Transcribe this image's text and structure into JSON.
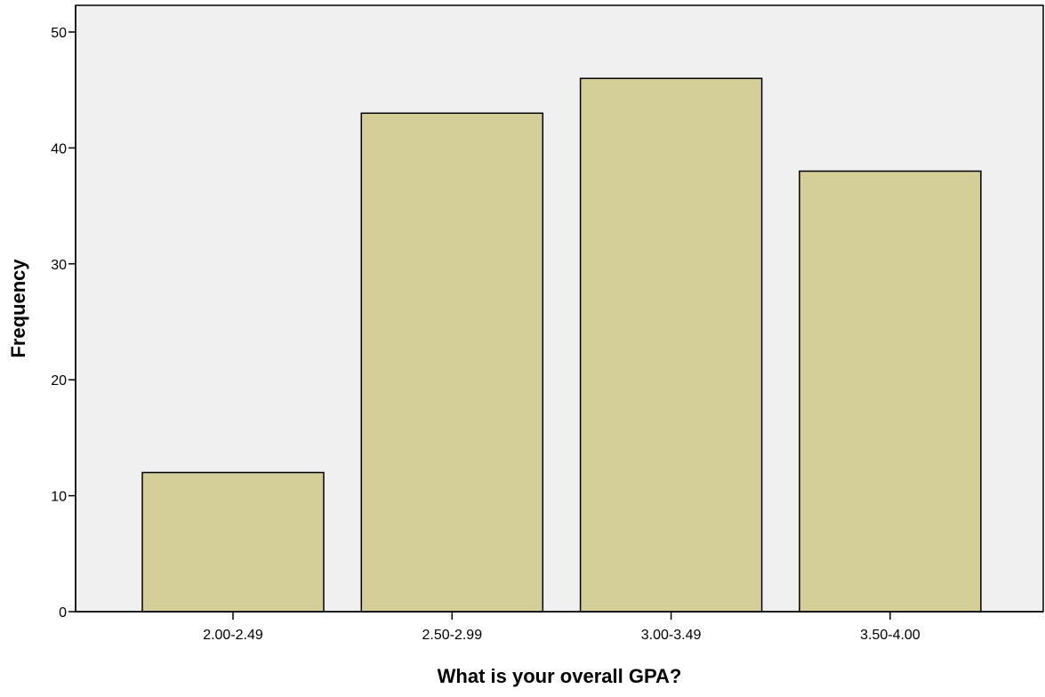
{
  "chart_data": {
    "type": "bar",
    "title": "",
    "xlabel": "What is your overall GPA?",
    "ylabel": "Frequency",
    "categories": [
      "2.00-2.49",
      "2.50-2.99",
      "3.00-3.49",
      "3.50-4.00"
    ],
    "values": [
      12,
      43,
      46,
      38
    ],
    "ylim": [
      0,
      52.3
    ],
    "yticks": [
      0,
      10,
      20,
      30,
      40,
      50
    ],
    "grid": false,
    "legend": "none",
    "colors": {
      "bar_fill": "#d4ce98",
      "bar_stroke": "#000000",
      "plot_background": "#f0f0f0",
      "axis": "#000000"
    }
  }
}
